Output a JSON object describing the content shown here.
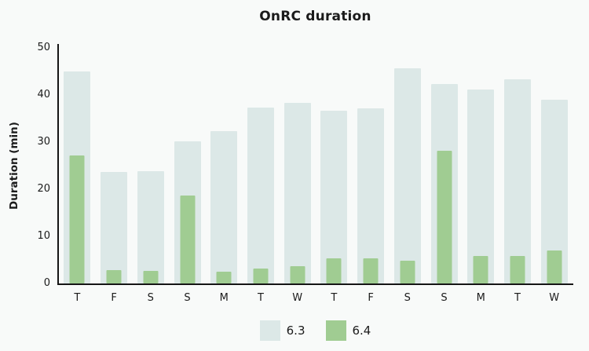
{
  "colors": {
    "background": "#f8faf9",
    "axis": "#151515",
    "text": "#1b1b1b",
    "series_63": "#dce8e7",
    "series_64": "#a0cc92"
  },
  "chart_data": {
    "type": "bar",
    "title": "OnRC duration",
    "xlabel": "",
    "ylabel": "Duration (min)",
    "ylim": [
      0,
      50
    ],
    "yticks": [
      0,
      10,
      20,
      30,
      40,
      50
    ],
    "grid": false,
    "legend_position": "bottom",
    "bar_style": "overlaid (wide pale bar with narrow green bar centered on top)",
    "categories": [
      "T",
      "F",
      "S",
      "S",
      "M",
      "T",
      "W",
      "T",
      "F",
      "S",
      "S",
      "M",
      "T",
      "W"
    ],
    "series": [
      {
        "name": "6.3",
        "color": "#dce8e7",
        "values": [
          45.0,
          23.7,
          23.8,
          30.1,
          32.4,
          37.3,
          38.3,
          36.7,
          37.2,
          45.6,
          42.3,
          41.2,
          43.3,
          39.0
        ]
      },
      {
        "name": "6.4",
        "color": "#a0cc92",
        "values": [
          27.2,
          2.8,
          2.6,
          18.6,
          2.5,
          3.1,
          3.6,
          5.4,
          5.4,
          4.9,
          28.2,
          5.8,
          5.8,
          7.0
        ]
      }
    ]
  }
}
